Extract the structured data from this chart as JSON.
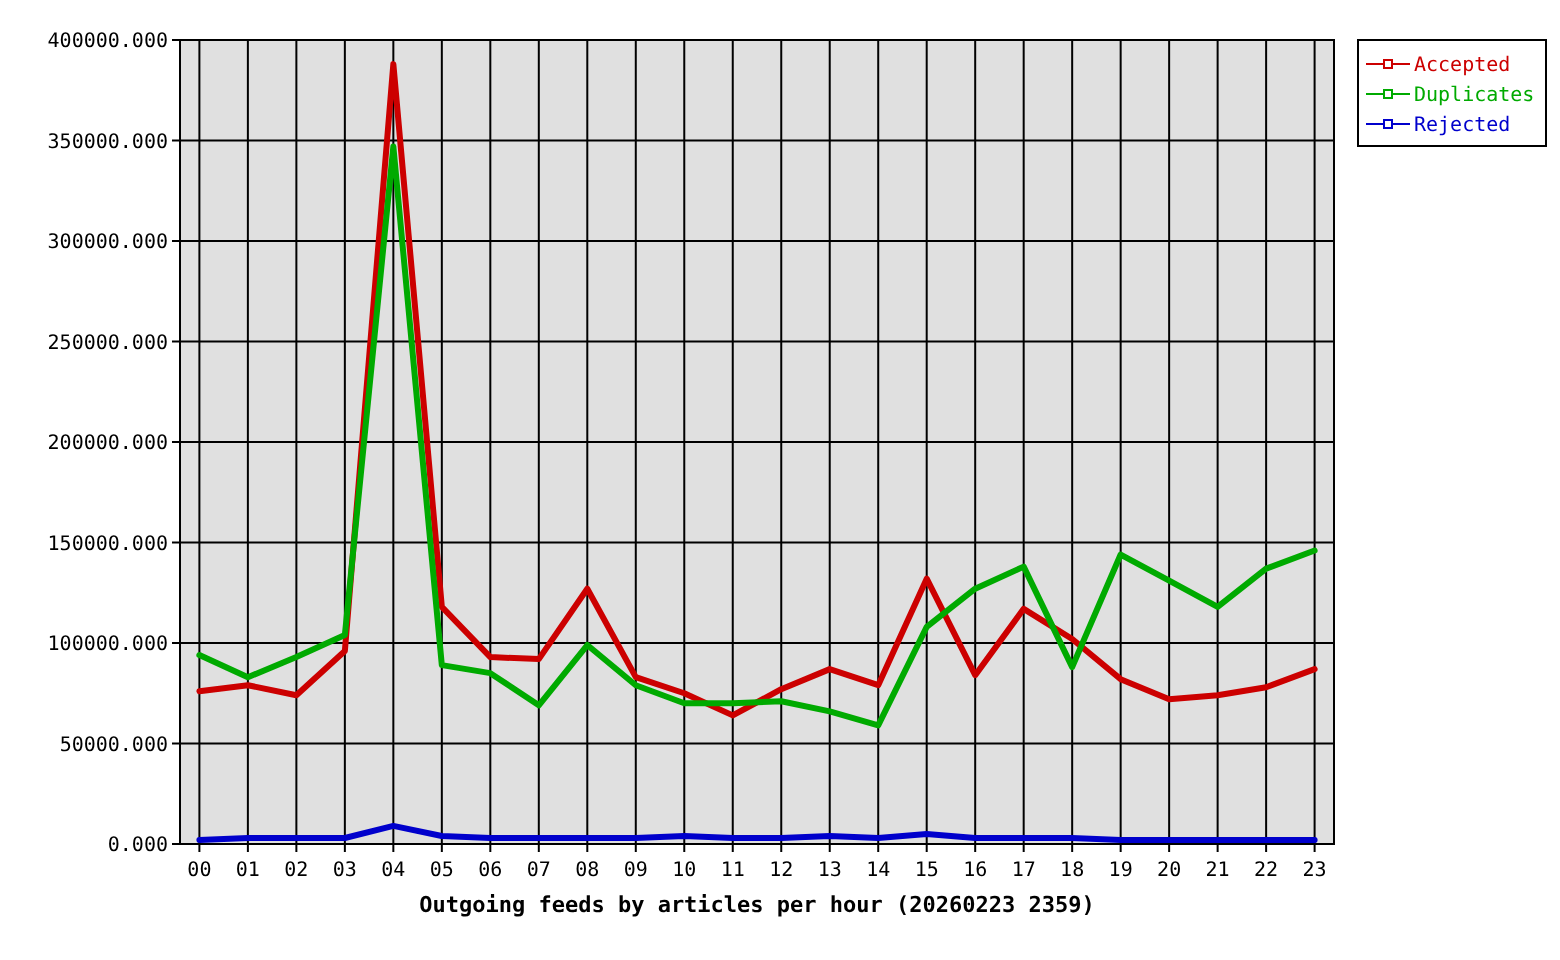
{
  "chart_data": {
    "type": "line",
    "xlabel": "Outgoing feeds by articles per hour (20260223 2359)",
    "categories": [
      "00",
      "01",
      "02",
      "03",
      "04",
      "05",
      "06",
      "07",
      "08",
      "09",
      "10",
      "11",
      "12",
      "13",
      "14",
      "15",
      "16",
      "17",
      "18",
      "19",
      "20",
      "21",
      "22",
      "23"
    ],
    "series": [
      {
        "name": "Accepted",
        "color": "#cc0000",
        "values": [
          76000,
          79000,
          74000,
          96000,
          388000,
          118000,
          93000,
          92000,
          127000,
          83000,
          75000,
          64000,
          77000,
          87000,
          79000,
          132000,
          84000,
          117000,
          102000,
          82000,
          72000,
          74000,
          78000,
          87000
        ]
      },
      {
        "name": "Duplicates",
        "color": "#00aa00",
        "values": [
          94000,
          83000,
          93000,
          104000,
          347000,
          89000,
          85000,
          69000,
          99000,
          79000,
          70000,
          70000,
          71000,
          66000,
          59000,
          108000,
          127000,
          138000,
          88000,
          144000,
          131000,
          118000,
          137000,
          146000
        ]
      },
      {
        "name": "Rejected",
        "color": "#0000cc",
        "values": [
          2000,
          3000,
          3000,
          3000,
          9000,
          4000,
          3000,
          3000,
          3000,
          3000,
          4000,
          3000,
          3000,
          4000,
          3000,
          5000,
          3000,
          3000,
          3000,
          2000,
          2000,
          2000,
          2000,
          2000
        ]
      }
    ],
    "ylim": [
      0,
      400000
    ],
    "yticks": [
      {
        "value": 0,
        "label": "0.000"
      },
      {
        "value": 50000,
        "label": "50000.000"
      },
      {
        "value": 100000,
        "label": "100000.000"
      },
      {
        "value": 150000,
        "label": "150000.000"
      },
      {
        "value": 200000,
        "label": "200000.000"
      },
      {
        "value": 250000,
        "label": "250000.000"
      },
      {
        "value": 300000,
        "label": "300000.000"
      },
      {
        "value": 350000,
        "label": "350000.000"
      },
      {
        "value": 400000,
        "label": "400000.000"
      }
    ],
    "grid": true,
    "legend": "top right",
    "marker": "none",
    "line_style": "solid"
  }
}
